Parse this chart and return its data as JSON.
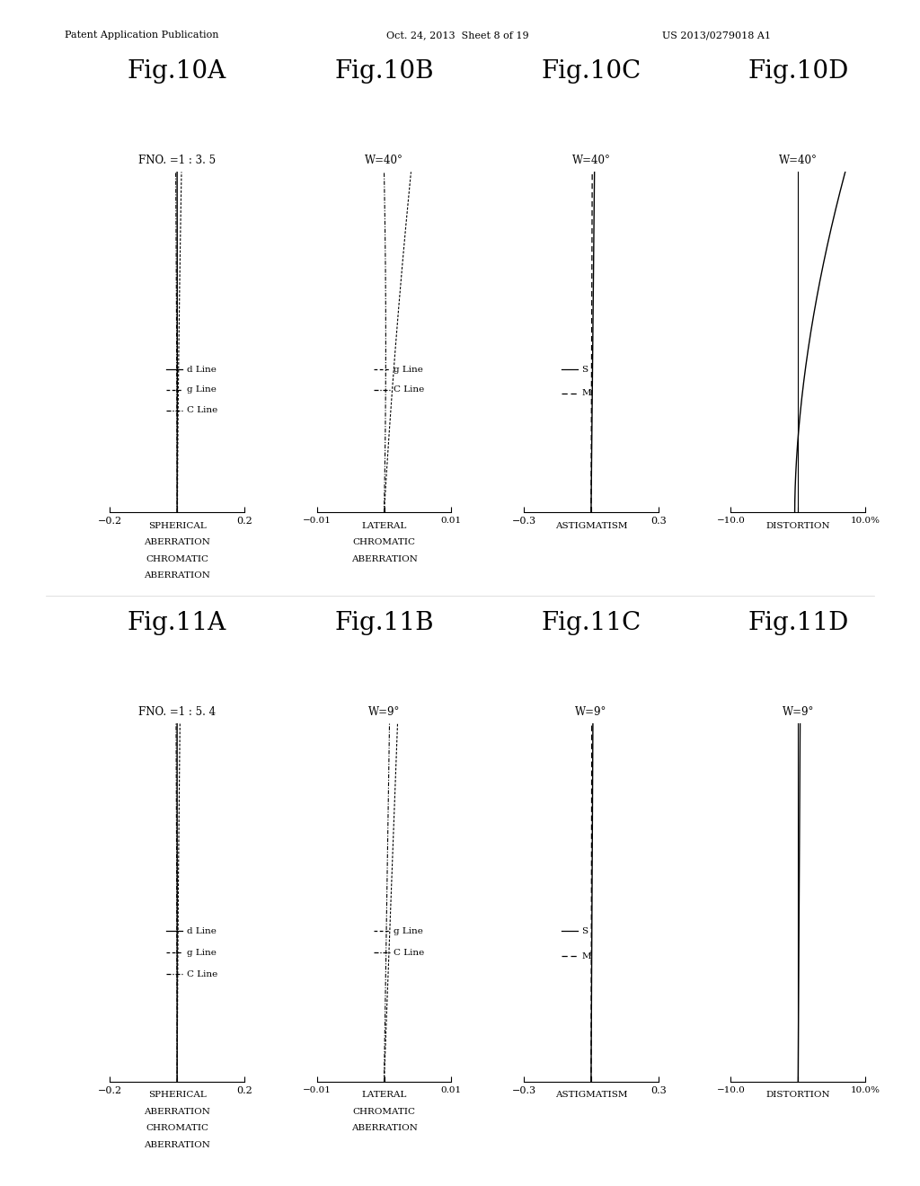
{
  "page_header_left": "Patent Application Publication",
  "page_header_mid": "Oct. 24, 2013  Sheet 8 of 19",
  "page_header_right": "US 2013/0279018 A1",
  "fig_row1_titles": [
    "Fig.10A",
    "Fig.10B",
    "Fig.10C",
    "Fig.10D"
  ],
  "fig_row2_titles": [
    "Fig.11A",
    "Fig.11B",
    "Fig.11C",
    "Fig.11D"
  ],
  "row1_sub_labels": [
    "FNO. =1 : 3. 5",
    "W=40°",
    "W=40°",
    "W=40°"
  ],
  "row2_sub_labels": [
    "FNO. =1 : 5. 4",
    "W=9°",
    "W=9°",
    "W=9°"
  ],
  "bottom_labels_A": [
    "SPHERICAL",
    "ABERRATION",
    "CHROMATIC",
    "ABERRATION"
  ],
  "bottom_labels_B": [
    "LATERAL",
    "CHROMATIC",
    "ABERRATION"
  ],
  "bottom_labels_C": [
    "ASTIGMATISM"
  ],
  "bottom_labels_D": [
    "DISTORTION"
  ],
  "background_color": "#ffffff"
}
